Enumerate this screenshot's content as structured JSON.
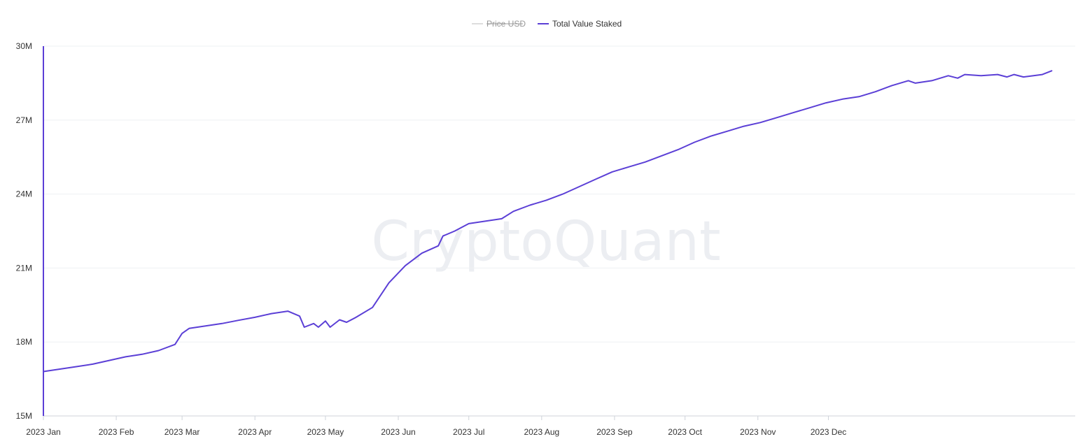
{
  "watermark": "CryptoQuant",
  "colors": {
    "series": "#5b3fd6",
    "grid": "#eef0f3",
    "muted": "#dddddd",
    "text": "#333333"
  },
  "chart_data": {
    "type": "line",
    "legend": {
      "placement": "top-center"
    },
    "grid": true,
    "series": [
      {
        "name": "Price USD",
        "hidden": true,
        "color": "#dddddd",
        "points": []
      },
      {
        "name": "Total Value Staked",
        "hidden": false,
        "color": "#5b3fd6",
        "points": [
          [
            "2023-01-01",
            16.8
          ],
          [
            "2023-01-08",
            16.9
          ],
          [
            "2023-01-15",
            17.0
          ],
          [
            "2023-01-22",
            17.1
          ],
          [
            "2023-01-29",
            17.25
          ],
          [
            "2023-02-05",
            17.4
          ],
          [
            "2023-02-12",
            17.5
          ],
          [
            "2023-02-19",
            17.65
          ],
          [
            "2023-02-26",
            17.9
          ],
          [
            "2023-03-01",
            18.35
          ],
          [
            "2023-03-04",
            18.55
          ],
          [
            "2023-03-11",
            18.65
          ],
          [
            "2023-03-18",
            18.75
          ],
          [
            "2023-03-25",
            18.88
          ],
          [
            "2023-04-01",
            19.0
          ],
          [
            "2023-04-08",
            19.15
          ],
          [
            "2023-04-15",
            19.25
          ],
          [
            "2023-04-20",
            19.05
          ],
          [
            "2023-04-22",
            18.6
          ],
          [
            "2023-04-26",
            18.75
          ],
          [
            "2023-04-28",
            18.6
          ],
          [
            "2023-05-01",
            18.85
          ],
          [
            "2023-05-03",
            18.6
          ],
          [
            "2023-05-07",
            18.9
          ],
          [
            "2023-05-10",
            18.8
          ],
          [
            "2023-05-14",
            19.0
          ],
          [
            "2023-05-21",
            19.4
          ],
          [
            "2023-05-28",
            20.4
          ],
          [
            "2023-06-04",
            21.1
          ],
          [
            "2023-06-11",
            21.6
          ],
          [
            "2023-06-18",
            21.9
          ],
          [
            "2023-06-20",
            22.3
          ],
          [
            "2023-06-25",
            22.5
          ],
          [
            "2023-07-01",
            22.8
          ],
          [
            "2023-07-08",
            22.9
          ],
          [
            "2023-07-15",
            23.0
          ],
          [
            "2023-07-20",
            23.3
          ],
          [
            "2023-07-27",
            23.55
          ],
          [
            "2023-08-03",
            23.75
          ],
          [
            "2023-08-10",
            24.0
          ],
          [
            "2023-08-17",
            24.3
          ],
          [
            "2023-08-24",
            24.6
          ],
          [
            "2023-08-31",
            24.9
          ],
          [
            "2023-09-07",
            25.1
          ],
          [
            "2023-09-14",
            25.3
          ],
          [
            "2023-09-21",
            25.55
          ],
          [
            "2023-09-28",
            25.8
          ],
          [
            "2023-10-05",
            26.1
          ],
          [
            "2023-10-12",
            26.35
          ],
          [
            "2023-10-19",
            26.55
          ],
          [
            "2023-10-26",
            26.75
          ],
          [
            "2023-11-02",
            26.9
          ],
          [
            "2023-11-09",
            27.1
          ],
          [
            "2023-11-16",
            27.3
          ],
          [
            "2023-11-23",
            27.5
          ],
          [
            "2023-11-30",
            27.7
          ],
          [
            "2023-12-07",
            27.85
          ],
          [
            "2023-12-14",
            27.95
          ],
          [
            "2023-12-21",
            28.15
          ],
          [
            "2023-12-28",
            28.4
          ],
          [
            "2024-01-04",
            28.6
          ],
          [
            "2024-01-07",
            28.5
          ],
          [
            "2024-01-14",
            28.6
          ],
          [
            "2024-01-21",
            28.8
          ],
          [
            "2024-01-25",
            28.7
          ],
          [
            "2024-01-28",
            28.85
          ],
          [
            "2024-02-04",
            28.8
          ],
          [
            "2024-02-11",
            28.85
          ],
          [
            "2024-02-15",
            28.75
          ],
          [
            "2024-02-18",
            28.85
          ],
          [
            "2024-02-22",
            28.75
          ],
          [
            "2024-03-01",
            28.85
          ],
          [
            "2024-03-05",
            29.0
          ]
        ]
      }
    ],
    "x_ticks": [
      {
        "label": "2023 Jan",
        "date": "2023-01-01"
      },
      {
        "label": "2023 Feb",
        "date": "2023-02-01"
      },
      {
        "label": "2023 Mar",
        "date": "2023-03-01"
      },
      {
        "label": "2023 Apr",
        "date": "2023-04-01"
      },
      {
        "label": "2023 May",
        "date": "2023-05-01"
      },
      {
        "label": "2023 Jun",
        "date": "2023-06-01"
      },
      {
        "label": "2023 Jul",
        "date": "2023-07-01"
      },
      {
        "label": "2023 Aug",
        "date": "2023-08-01"
      },
      {
        "label": "2023 Sep",
        "date": "2023-09-01"
      },
      {
        "label": "2023 Oct",
        "date": "2023-10-01"
      },
      {
        "label": "2023 Nov",
        "date": "2023-11-01"
      },
      {
        "label": "2023 Dec",
        "date": "2023-12-01"
      }
    ],
    "y_ticks": [
      {
        "label": "15M",
        "value": 15
      },
      {
        "label": "18M",
        "value": 18
      },
      {
        "label": "21M",
        "value": 21
      },
      {
        "label": "24M",
        "value": 24
      },
      {
        "label": "27M",
        "value": 27
      },
      {
        "label": "30M",
        "value": 30
      }
    ],
    "ylim": [
      15,
      30
    ],
    "xlim": [
      "2023-01-01",
      "2024-03-15"
    ]
  }
}
